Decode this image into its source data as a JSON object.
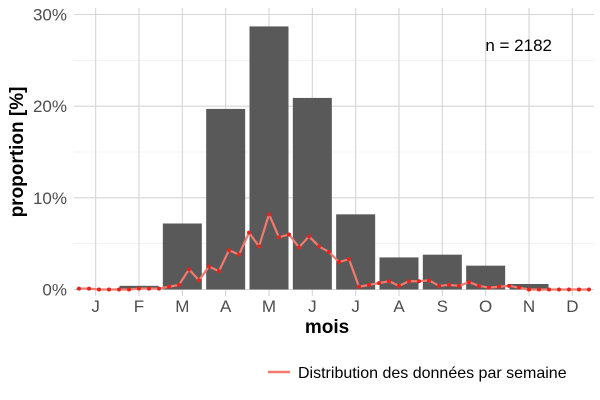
{
  "chart_data": {
    "type": "bar",
    "xlabel": "mois",
    "ylabel": "proportion [%]",
    "annotation": "n = 2182",
    "categories": [
      "J",
      "F",
      "M",
      "A",
      "M",
      "J",
      "J",
      "A",
      "S",
      "O",
      "N",
      "D"
    ],
    "values": [
      0.1,
      0.4,
      7.2,
      19.7,
      28.7,
      20.9,
      8.2,
      3.5,
      3.8,
      2.6,
      0.6,
      0.0
    ],
    "ylim": [
      0,
      30
    ],
    "yticks": [
      0,
      10,
      20,
      30
    ],
    "ytick_labels": [
      "0%",
      "10%",
      "20%",
      "30%"
    ],
    "grid": true,
    "bar_color": "#595959",
    "series": [
      {
        "name": "Distribution des données par semaine",
        "type": "line",
        "color": "#f07a6f",
        "point_color": "#e8231e",
        "x": [
          1,
          2,
          3,
          4,
          5,
          6,
          7,
          8,
          9,
          10,
          11,
          12,
          13,
          14,
          15,
          16,
          17,
          18,
          19,
          20,
          21,
          22,
          23,
          24,
          25,
          26,
          27,
          28,
          29,
          30,
          31,
          32,
          33,
          34,
          35,
          36,
          37,
          38,
          39,
          40,
          41,
          42,
          43,
          44,
          45,
          46,
          47,
          48,
          49,
          50,
          51,
          52
        ],
        "values": [
          0.1,
          0.1,
          0.0,
          0.0,
          0.0,
          0.0,
          0.1,
          0.1,
          0.1,
          0.3,
          0.5,
          2.2,
          1.0,
          2.5,
          2.0,
          4.3,
          3.8,
          6.2,
          4.7,
          8.2,
          5.7,
          6.0,
          4.6,
          5.8,
          4.7,
          4.1,
          3.0,
          3.3,
          0.3,
          0.5,
          0.7,
          0.9,
          0.4,
          0.9,
          0.9,
          1.0,
          0.4,
          0.5,
          0.4,
          0.8,
          0.4,
          0.2,
          0.3,
          0.4,
          0.2,
          0.0,
          0.0,
          0.0,
          0.0,
          0.0,
          0.0,
          0.0
        ]
      }
    ],
    "legend": {
      "position": "bottom-right",
      "label": "Distribution des données par semaine"
    }
  }
}
